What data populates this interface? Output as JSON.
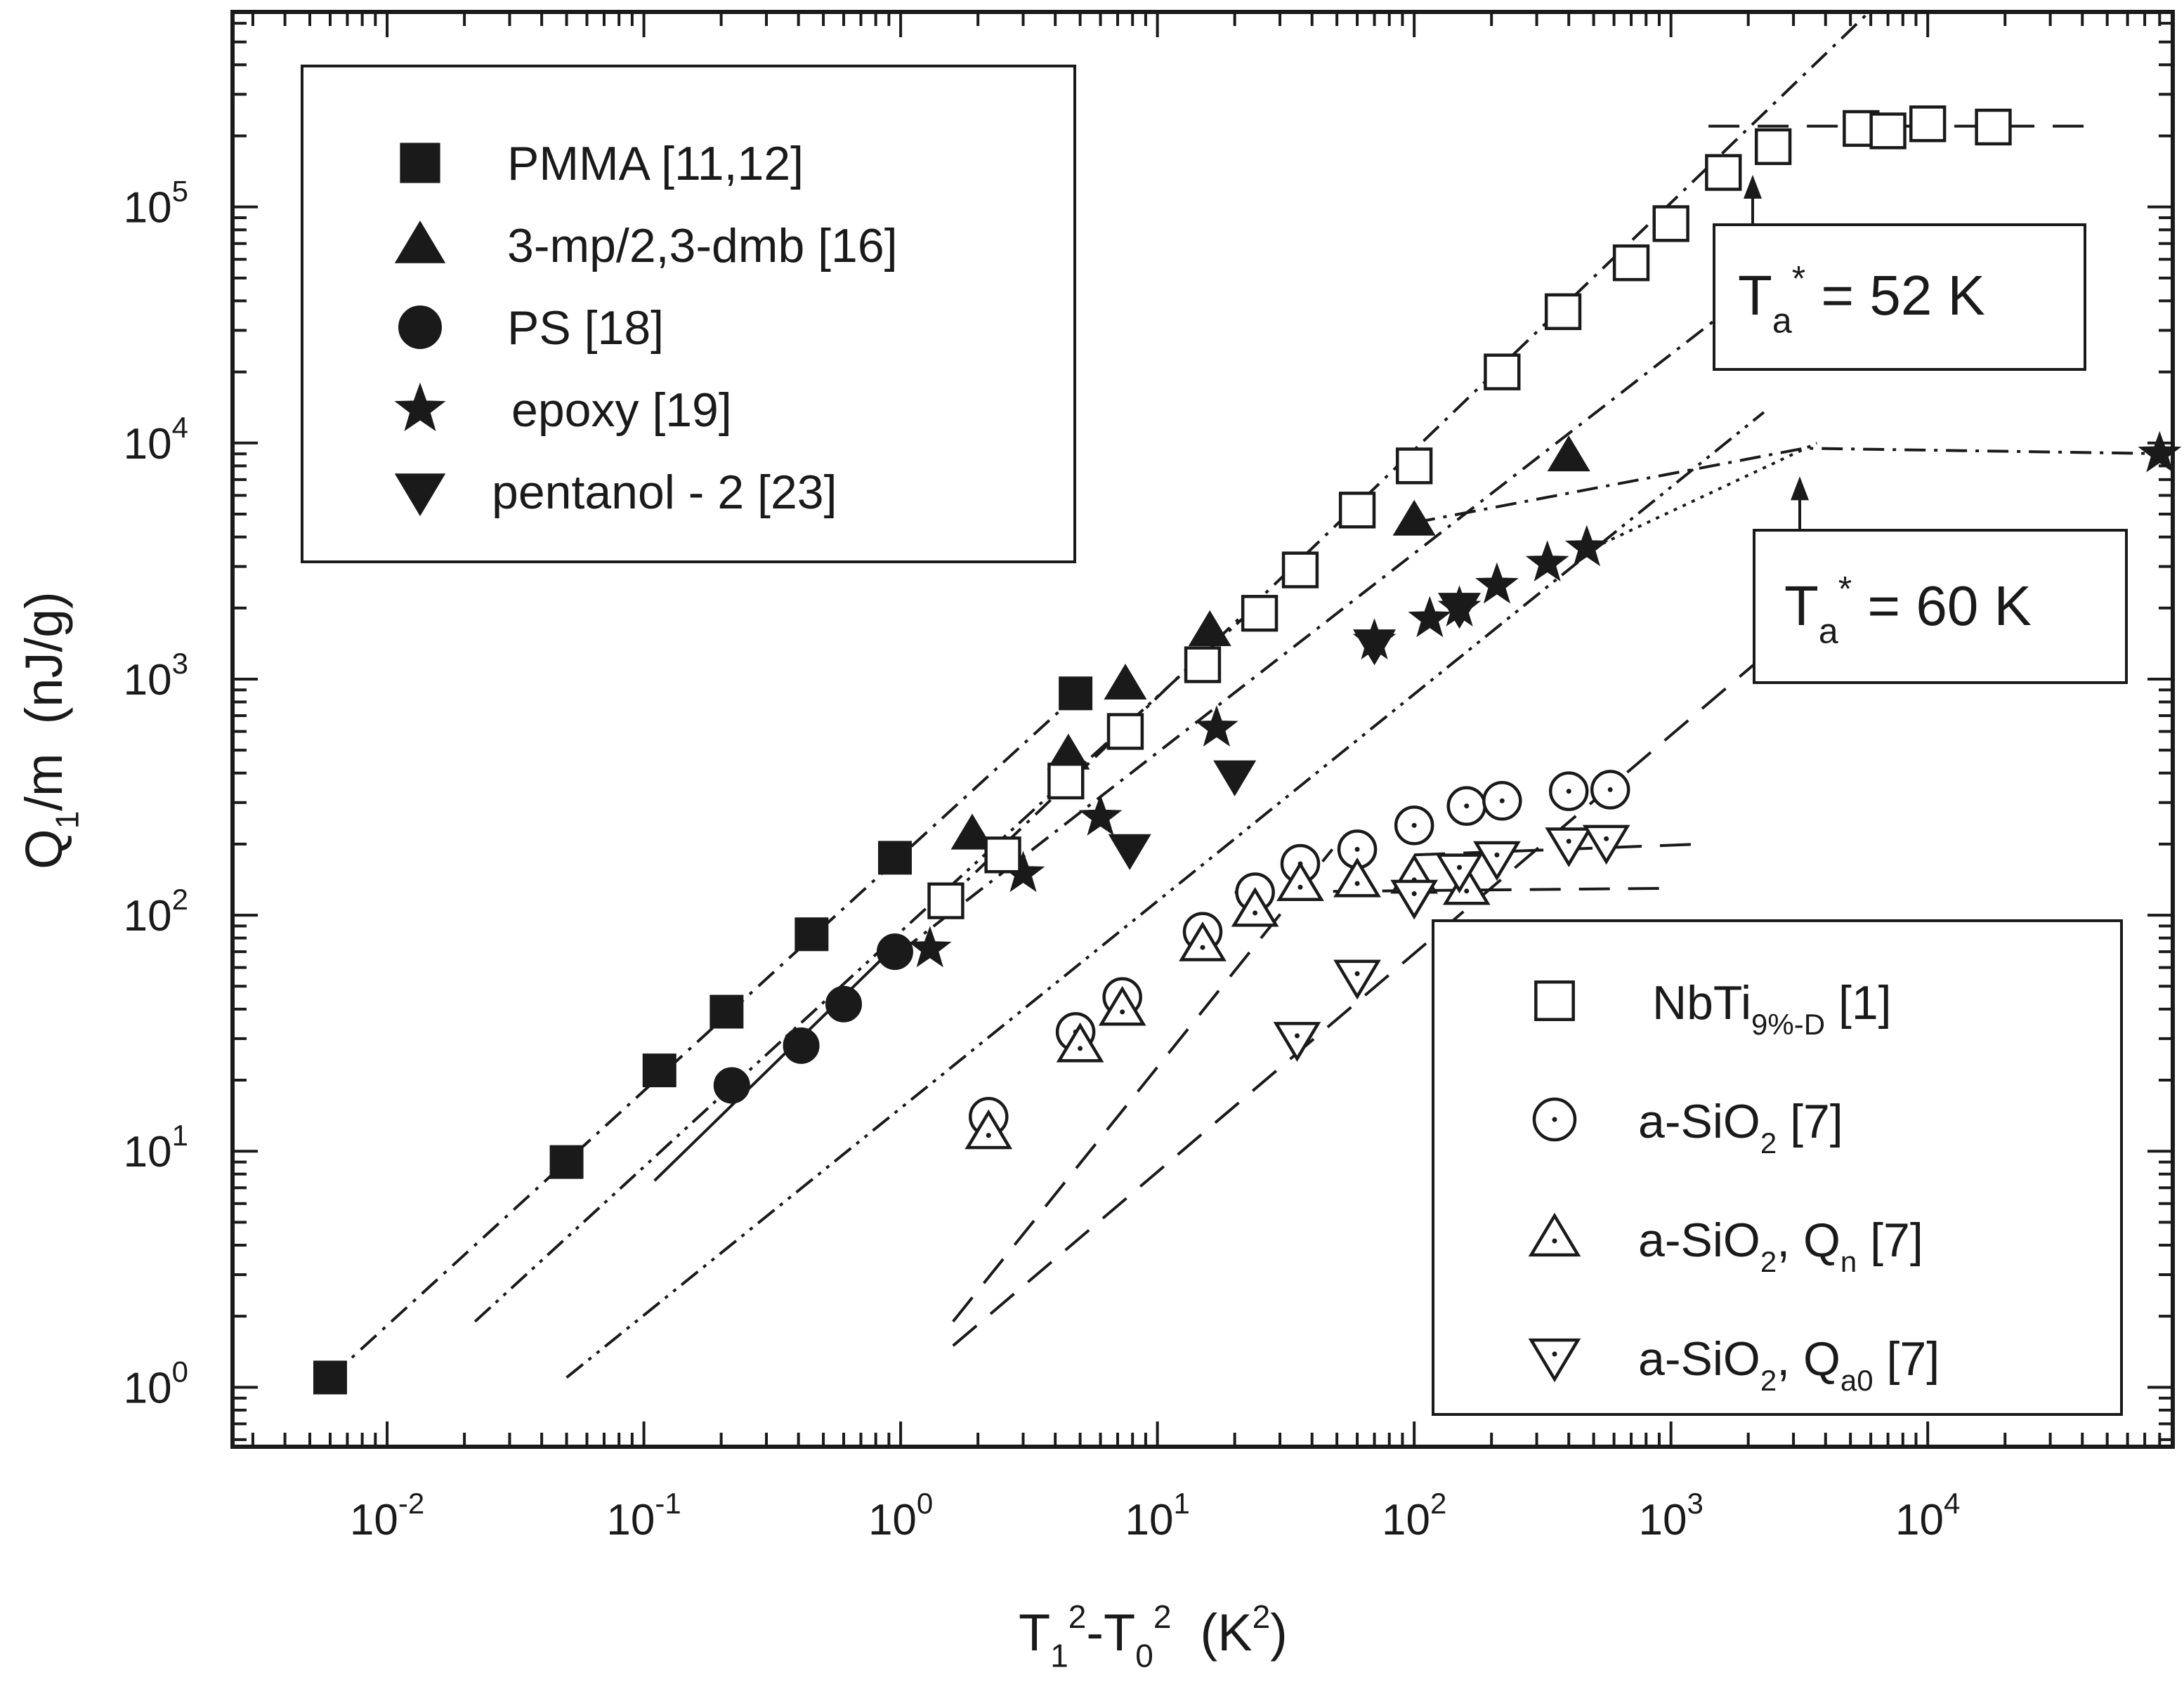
{
  "chart_data": {
    "type": "scatter",
    "x_scale": "log",
    "y_scale": "log",
    "xlim": [
      0.0025,
      90000
    ],
    "ylim": [
      0.56,
      670000
    ],
    "x_ticks": [
      {
        "value": 0.01,
        "base": "10",
        "exp": "-2"
      },
      {
        "value": 0.1,
        "base": "10",
        "exp": "-1"
      },
      {
        "value": 1,
        "base": "10",
        "exp": "0"
      },
      {
        "value": 10,
        "base": "10",
        "exp": "1"
      },
      {
        "value": 100,
        "base": "10",
        "exp": "2"
      },
      {
        "value": 1000,
        "base": "10",
        "exp": "3"
      },
      {
        "value": 10000,
        "base": "10",
        "exp": "4"
      }
    ],
    "y_ticks": [
      {
        "value": 1,
        "base": "10",
        "exp": "0"
      },
      {
        "value": 10,
        "base": "10",
        "exp": "1"
      },
      {
        "value": 100,
        "base": "10",
        "exp": "2"
      },
      {
        "value": 1000,
        "base": "10",
        "exp": "3"
      },
      {
        "value": 10000,
        "base": "10",
        "exp": "4"
      },
      {
        "value": 100000,
        "base": "10",
        "exp": "5"
      }
    ],
    "xlabel": {
      "parts": [
        {
          "t": "T",
          "k": "n"
        },
        {
          "t": "1",
          "k": "sub"
        },
        {
          "t": "2",
          "k": "sup"
        },
        {
          "t": "-T",
          "k": "n"
        },
        {
          "t": "0",
          "k": "sub"
        },
        {
          "t": "2",
          "k": "sup"
        },
        {
          "t": "  (K",
          "k": "n"
        },
        {
          "t": "2",
          "k": "sup"
        },
        {
          "t": ")",
          "k": "n"
        }
      ]
    },
    "ylabel": {
      "parts": [
        {
          "t": "Q",
          "k": "n"
        },
        {
          "t": "1",
          "k": "sub"
        },
        {
          "t": "/m  (nJ/g)",
          "k": "n"
        }
      ]
    },
    "series": [
      {
        "name": "PMMA [11,12]",
        "marker": "square",
        "filled": true,
        "points": [
          [
            0.006,
            1.1
          ],
          [
            0.05,
            9
          ],
          [
            0.115,
            22
          ],
          [
            0.21,
            39
          ],
          [
            0.45,
            83
          ],
          [
            0.95,
            175
          ],
          [
            4.8,
            870
          ]
        ]
      },
      {
        "name": "3-mp/2,3-dmb [16]",
        "marker": "triangle-up",
        "filled": true,
        "points": [
          [
            1.9,
            220
          ],
          [
            4.5,
            480
          ],
          [
            7.5,
            950
          ],
          [
            16,
            1600
          ],
          [
            100,
            4700
          ],
          [
            400,
            8800
          ]
        ]
      },
      {
        "name": "PS [18]",
        "marker": "circle",
        "filled": true,
        "points": [
          [
            0.22,
            19
          ],
          [
            0.41,
            28
          ],
          [
            0.6,
            42
          ],
          [
            0.95,
            70
          ]
        ]
      },
      {
        "name": "epoxy [19]",
        "marker": "star",
        "filled": true,
        "points": [
          [
            1.3,
            72
          ],
          [
            3.0,
            150
          ],
          [
            6.0,
            260
          ],
          [
            17,
            620
          ],
          [
            70,
            1450
          ],
          [
            115,
            1800
          ],
          [
            150,
            2000
          ],
          [
            210,
            2500
          ],
          [
            330,
            3100
          ],
          [
            470,
            3600
          ],
          [
            80000,
            9000
          ]
        ]
      },
      {
        "name": "pentanol - 2 [23]",
        "marker": "triangle-down",
        "filled": true,
        "points": [
          [
            7.8,
            190
          ],
          [
            20,
            390
          ],
          [
            70,
            1400
          ],
          [
            150,
            2000
          ]
        ]
      },
      {
        "name": "NbTi9%-D [1]",
        "name_parts": [
          {
            "t": "NbTi",
            "k": "n"
          },
          {
            "t": "9%-D",
            "k": "sub"
          },
          {
            "t": " [1]",
            "k": "n"
          }
        ],
        "marker": "square",
        "filled": false,
        "points": [
          [
            1.5,
            115
          ],
          [
            2.5,
            180
          ],
          [
            4.4,
            370
          ],
          [
            7.5,
            600
          ],
          [
            15,
            1150
          ],
          [
            25,
            1900
          ],
          [
            36,
            2900
          ],
          [
            60,
            5200
          ],
          [
            100,
            8000
          ],
          [
            220,
            20000
          ],
          [
            380,
            36000
          ],
          [
            700,
            58000
          ],
          [
            1000,
            85000
          ],
          [
            1600,
            140000
          ],
          [
            2500,
            180000
          ],
          [
            5500,
            215000
          ],
          [
            7000,
            210000
          ],
          [
            10000,
            225000
          ],
          [
            18000,
            218000
          ]
        ]
      },
      {
        "name": "a-SiO2 [7]",
        "name_parts": [
          {
            "t": "a-SiO",
            "k": "n"
          },
          {
            "t": "2",
            "k": "sub"
          },
          {
            "t": " [7]",
            "k": "n"
          }
        ],
        "marker": "circle",
        "filled": false,
        "points": [
          [
            2.2,
            14
          ],
          [
            4.8,
            32
          ],
          [
            7.3,
            45
          ],
          [
            15,
            85
          ],
          [
            24,
            125
          ],
          [
            36,
            165
          ],
          [
            60,
            190
          ],
          [
            100,
            240
          ],
          [
            160,
            290
          ],
          [
            220,
            305
          ],
          [
            400,
            335
          ],
          [
            580,
            340
          ]
        ]
      },
      {
        "name": "a-SiO2, Qn [7]",
        "name_parts": [
          {
            "t": "a-SiO",
            "k": "n"
          },
          {
            "t": "2",
            "k": "sub"
          },
          {
            "t": ", Q",
            "k": "n"
          },
          {
            "t": "n",
            "k": "sub"
          },
          {
            "t": " [7]",
            "k": "n"
          }
        ],
        "marker": "triangle-up",
        "filled": false,
        "points": [
          [
            2.2,
            12
          ],
          [
            5,
            28
          ],
          [
            7.3,
            40
          ],
          [
            15,
            75
          ],
          [
            24,
            105
          ],
          [
            36,
            135
          ],
          [
            60,
            140
          ],
          [
            100,
            145
          ],
          [
            160,
            130
          ]
        ]
      },
      {
        "name": "a-SiO2, Qa0 [7]",
        "name_parts": [
          {
            "t": "a-SiO",
            "k": "n"
          },
          {
            "t": "2",
            "k": "sub"
          },
          {
            "t": ", Q",
            "k": "n"
          },
          {
            "t": "a0",
            "k": "sub"
          },
          {
            "t": " [7]",
            "k": "n"
          }
        ],
        "marker": "triangle-down",
        "filled": false,
        "points": [
          [
            35,
            30
          ],
          [
            60,
            55
          ],
          [
            100,
            120
          ],
          [
            150,
            155
          ],
          [
            210,
            175
          ],
          [
            400,
            200
          ],
          [
            560,
            205
          ]
        ]
      }
    ],
    "fit_lines": [
      {
        "style": "dash-dot",
        "points": [
          [
            0.006,
            1.1
          ],
          [
            5,
            880
          ]
        ]
      },
      {
        "style": "dash-dot",
        "points": [
          [
            1.5,
            115
          ],
          [
            6000,
            680000
          ]
        ]
      },
      {
        "style": "dash-dot-dot",
        "points": [
          [
            0.022,
            1.9
          ],
          [
            25,
            2100
          ]
        ]
      },
      {
        "style": "solid",
        "points": [
          [
            0.11,
            7.5
          ],
          [
            1.0,
            78
          ]
        ]
      },
      {
        "style": "dash-dot",
        "points": [
          [
            1.0,
            70
          ],
          [
            2300,
            48000
          ]
        ]
      },
      {
        "style": "dash-dot-dot",
        "points": [
          [
            0.05,
            1.1
          ],
          [
            2300,
            13500
          ]
        ]
      },
      {
        "style": "dash-dot",
        "points": [
          [
            100,
            4600
          ],
          [
            3300,
            9500
          ],
          [
            90000,
            9000
          ]
        ]
      },
      {
        "style": "dotted",
        "points": [
          [
            500,
            3600
          ],
          [
            3700,
            10000
          ]
        ]
      },
      {
        "style": "dash",
        "points": [
          [
            1.6,
            1.9
          ],
          [
            48,
            190
          ]
        ]
      },
      {
        "style": "dash",
        "points": [
          [
            1.6,
            1.5
          ],
          [
            2100,
            1150
          ]
        ]
      },
      {
        "style": "dash",
        "points": [
          [
            1400,
            220000
          ],
          [
            45000,
            220000
          ]
        ]
      },
      {
        "style": "dash",
        "points": [
          [
            20,
            125
          ],
          [
            1000,
            130
          ]
        ]
      },
      {
        "style": "dash",
        "points": [
          [
            100,
            180
          ],
          [
            1300,
            200
          ]
        ]
      }
    ],
    "annotations": [
      {
        "parts": [
          {
            "t": "T",
            "k": "n"
          },
          {
            "t": "a",
            "k": "sub"
          },
          {
            "t": "*",
            "k": "sup"
          },
          {
            "t": " = 52 K",
            "k": "n"
          }
        ],
        "arrow_to": [
          2500,
          180000
        ]
      },
      {
        "parts": [
          {
            "t": "T",
            "k": "n"
          },
          {
            "t": "a",
            "k": "sub"
          },
          {
            "t": "*",
            "k": "sup"
          },
          {
            "t": " = 60 K",
            "k": "n"
          }
        ],
        "arrow_to": [
          3900,
          9500
        ]
      }
    ],
    "legends": [
      "top-left",
      "bottom-right"
    ],
    "grid": false
  }
}
